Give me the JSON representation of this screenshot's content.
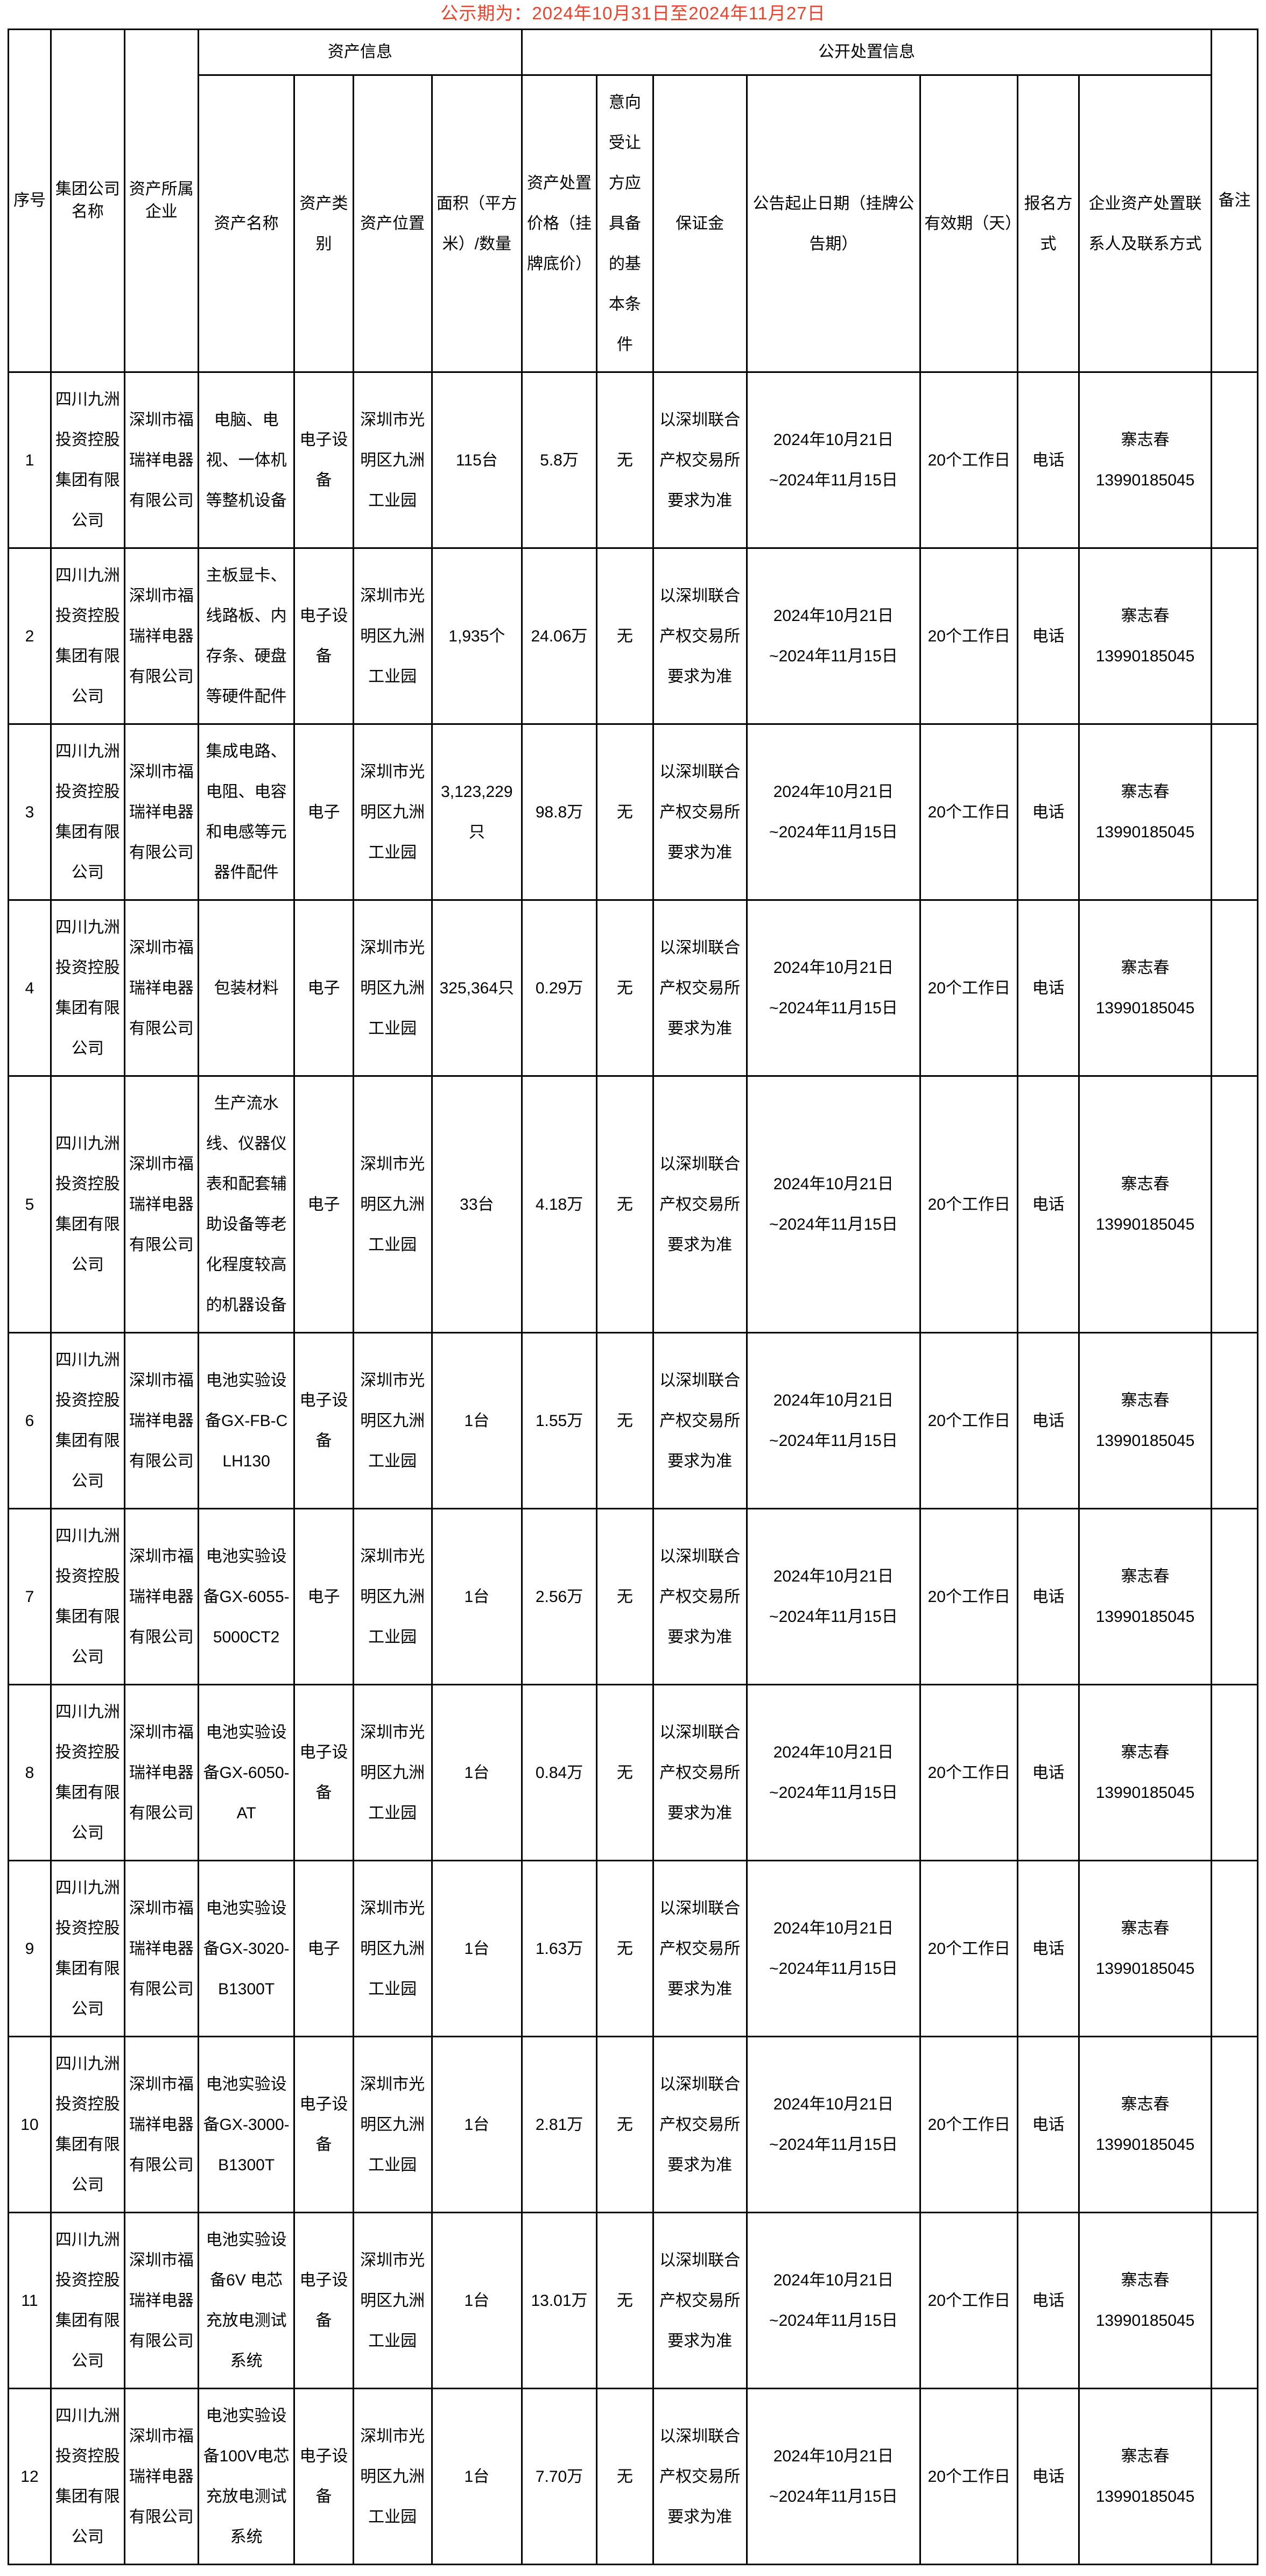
{
  "title": "公示期为：2024年10月31日至2024年11月27日",
  "colors": {
    "title_red": "#e8432d",
    "border": "#000000",
    "text": "#000000",
    "background": "#ffffff"
  },
  "table": {
    "group_headers": {
      "asset_info": "资产信息",
      "disposal_info": "公开处置信息"
    },
    "columns": [
      "序号",
      "集团公司名称",
      "资产所属企业",
      "资产名称",
      "资产类别",
      "资产位置",
      "面积（平方米）/数量",
      "资产处置价格（挂牌底价）",
      "意向受让方应具备的基本条件",
      "保证金",
      "公告起止日期（挂牌公告期）",
      "有效期（天）",
      "报名方式",
      "企业资产处置联系人及联系方式",
      "备注"
    ],
    "rows": [
      {
        "seq": "1",
        "group_company": "四川九洲投资控股集团有限公司",
        "owner_company": "深圳市福瑞祥电器有限公司",
        "asset_name": "电脑、电视、一体机等整机设备",
        "asset_type": "电子设备",
        "location": "深圳市光明区九洲工业园",
        "quantity": "115台",
        "price": "5.8万",
        "conditions": "无",
        "deposit": "以深圳联合产权交易所要求为准",
        "period_line1": "2024年10月21日",
        "period_line2": "~2024年11月15日",
        "validity": "20个工作日",
        "method": "电话",
        "contact_name": "寨志春",
        "contact_phone": "13990185045",
        "remark": ""
      },
      {
        "seq": "2",
        "group_company": "四川九洲投资控股集团有限公司",
        "owner_company": "深圳市福瑞祥电器有限公司",
        "asset_name": "主板显卡、线路板、内存条、硬盘等硬件配件",
        "asset_type": "电子设备",
        "location": "深圳市光明区九洲工业园",
        "quantity": "1,935个",
        "price": "24.06万",
        "conditions": "无",
        "deposit": "以深圳联合产权交易所要求为准",
        "period_line1": "2024年10月21日",
        "period_line2": "~2024年11月15日",
        "validity": "20个工作日",
        "method": "电话",
        "contact_name": "寨志春",
        "contact_phone": "13990185045",
        "remark": ""
      },
      {
        "seq": "3",
        "group_company": "四川九洲投资控股集团有限公司",
        "owner_company": "深圳市福瑞祥电器有限公司",
        "asset_name": "集成电路、电阻、电容和电感等元器件配件",
        "asset_type": "电子",
        "location": "深圳市光明区九洲工业园",
        "quantity": "3,123,229只",
        "price": "98.8万",
        "conditions": "无",
        "deposit": "以深圳联合产权交易所要求为准",
        "period_line1": "2024年10月21日",
        "period_line2": "~2024年11月15日",
        "validity": "20个工作日",
        "method": "电话",
        "contact_name": "寨志春",
        "contact_phone": "13990185045",
        "remark": ""
      },
      {
        "seq": "4",
        "group_company": "四川九洲投资控股集团有限公司",
        "owner_company": "深圳市福瑞祥电器有限公司",
        "asset_name": "包装材料",
        "asset_type": "电子",
        "location": "深圳市光明区九洲工业园",
        "quantity": "325,364只",
        "price": "0.29万",
        "conditions": "无",
        "deposit": "以深圳联合产权交易所要求为准",
        "period_line1": "2024年10月21日",
        "period_line2": "~2024年11月15日",
        "validity": "20个工作日",
        "method": "电话",
        "contact_name": "寨志春",
        "contact_phone": "13990185045",
        "remark": ""
      },
      {
        "seq": "5",
        "group_company": "四川九洲投资控股集团有限公司",
        "owner_company": "深圳市福瑞祥电器有限公司",
        "asset_name": "生产流水线、仪器仪表和配套辅助设备等老化程度较高的机器设备",
        "asset_type": "电子",
        "location": "深圳市光明区九洲工业园",
        "quantity": "33台",
        "price": "4.18万",
        "conditions": "无",
        "deposit": "以深圳联合产权交易所要求为准",
        "period_line1": "2024年10月21日",
        "period_line2": "~2024年11月15日",
        "validity": "20个工作日",
        "method": "电话",
        "contact_name": "寨志春",
        "contact_phone": "13990185045",
        "remark": ""
      },
      {
        "seq": "6",
        "group_company": "四川九洲投资控股集团有限公司",
        "owner_company": "深圳市福瑞祥电器有限公司",
        "asset_name": "电池实验设备GX-FB-CLH130",
        "asset_type": "电子设备",
        "location": "深圳市光明区九洲工业园",
        "quantity": "1台",
        "price": "1.55万",
        "conditions": "无",
        "deposit": "以深圳联合产权交易所要求为准",
        "period_line1": "2024年10月21日",
        "period_line2": "~2024年11月15日",
        "validity": "20个工作日",
        "method": "电话",
        "contact_name": "寨志春",
        "contact_phone": "13990185045",
        "remark": ""
      },
      {
        "seq": "7",
        "group_company": "四川九洲投资控股集团有限公司",
        "owner_company": "深圳市福瑞祥电器有限公司",
        "asset_name": "电池实验设备GX-6055-5000CT2",
        "asset_type": "电子",
        "location": "深圳市光明区九洲工业园",
        "quantity": "1台",
        "price": "2.56万",
        "conditions": "无",
        "deposit": "以深圳联合产权交易所要求为准",
        "period_line1": "2024年10月21日",
        "period_line2": "~2024年11月15日",
        "validity": "20个工作日",
        "method": "电话",
        "contact_name": "寨志春",
        "contact_phone": "13990185045",
        "remark": ""
      },
      {
        "seq": "8",
        "group_company": "四川九洲投资控股集团有限公司",
        "owner_company": "深圳市福瑞祥电器有限公司",
        "asset_name": "电池实验设备GX-6050-AT",
        "asset_type": "电子设备",
        "location": "深圳市光明区九洲工业园",
        "quantity": "1台",
        "price": "0.84万",
        "conditions": "无",
        "deposit": "以深圳联合产权交易所要求为准",
        "period_line1": "2024年10月21日",
        "period_line2": "~2024年11月15日",
        "validity": "20个工作日",
        "method": "电话",
        "contact_name": "寨志春",
        "contact_phone": "13990185045",
        "remark": ""
      },
      {
        "seq": "9",
        "group_company": "四川九洲投资控股集团有限公司",
        "owner_company": "深圳市福瑞祥电器有限公司",
        "asset_name": "电池实验设备GX-3020-B1300T",
        "asset_type": "电子",
        "location": "深圳市光明区九洲工业园",
        "quantity": "1台",
        "price": "1.63万",
        "conditions": "无",
        "deposit": "以深圳联合产权交易所要求为准",
        "period_line1": "2024年10月21日",
        "period_line2": "~2024年11月15日",
        "validity": "20个工作日",
        "method": "电话",
        "contact_name": "寨志春",
        "contact_phone": "13990185045",
        "remark": ""
      },
      {
        "seq": "10",
        "group_company": "四川九洲投资控股集团有限公司",
        "owner_company": "深圳市福瑞祥电器有限公司",
        "asset_name": "电池实验设备GX-3000-B1300T",
        "asset_type": "电子设备",
        "location": "深圳市光明区九洲工业园",
        "quantity": "1台",
        "price": "2.81万",
        "conditions": "无",
        "deposit": "以深圳联合产权交易所要求为准",
        "period_line1": "2024年10月21日",
        "period_line2": "~2024年11月15日",
        "validity": "20个工作日",
        "method": "电话",
        "contact_name": "寨志春",
        "contact_phone": "13990185045",
        "remark": ""
      },
      {
        "seq": "11",
        "group_company": "四川九洲投资控股集团有限公司",
        "owner_company": "深圳市福瑞祥电器有限公司",
        "asset_name": "电池实验设备6V 电芯充放电测试系统",
        "asset_type": "电子设备",
        "location": "深圳市光明区九洲工业园",
        "quantity": "1台",
        "price": "13.01万",
        "conditions": "无",
        "deposit": "以深圳联合产权交易所要求为准",
        "period_line1": "2024年10月21日",
        "period_line2": "~2024年11月15日",
        "validity": "20个工作日",
        "method": "电话",
        "contact_name": "寨志春",
        "contact_phone": "13990185045",
        "remark": ""
      },
      {
        "seq": "12",
        "group_company": "四川九洲投资控股集团有限公司",
        "owner_company": "深圳市福瑞祥电器有限公司",
        "asset_name": "电池实验设备100V电芯充放电测试系统",
        "asset_type": "电子设备",
        "location": "深圳市光明区九洲工业园",
        "quantity": "1台",
        "price": "7.70万",
        "conditions": "无",
        "deposit": "以深圳联合产权交易所要求为准",
        "period_line1": "2024年10月21日",
        "period_line2": "~2024年11月15日",
        "validity": "20个工作日",
        "method": "电话",
        "contact_name": "寨志春",
        "contact_phone": "13990185045",
        "remark": ""
      }
    ]
  }
}
